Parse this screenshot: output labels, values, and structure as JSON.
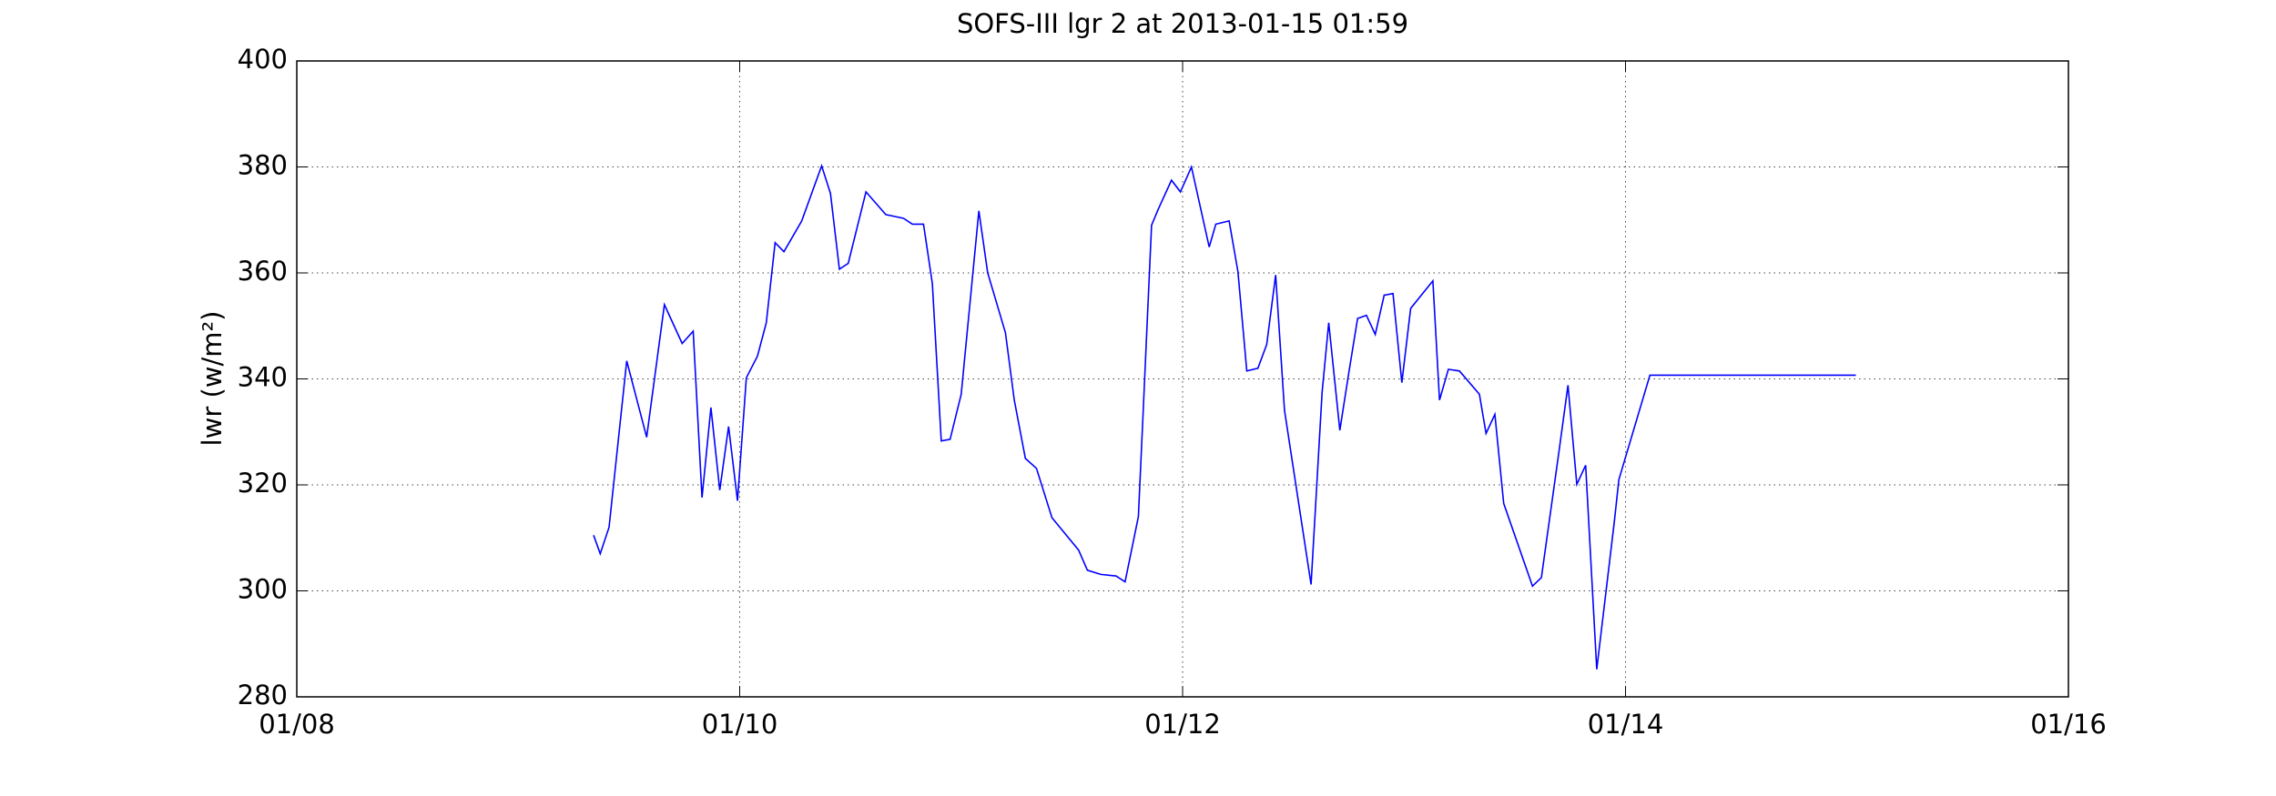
{
  "chart_data": {
    "type": "line",
    "title": "SOFS-III lgr 2 at 2013-01-15 01:59",
    "ylabel": "lwr (w/m²)",
    "x": [
      9.34,
      9.37,
      9.41,
      9.49,
      9.58,
      9.66,
      9.74,
      9.79,
      9.83,
      9.87,
      9.91,
      9.95,
      9.99,
      10.03,
      10.08,
      10.12,
      10.16,
      10.2,
      10.28,
      10.37,
      10.41,
      10.45,
      10.49,
      10.57,
      10.66,
      10.74,
      10.78,
      10.83,
      10.87,
      10.91,
      10.95,
      11.0,
      11.08,
      11.12,
      11.2,
      11.24,
      11.29,
      11.34,
      11.41,
      11.53,
      11.57,
      11.63,
      11.7,
      11.74,
      11.8,
      11.82,
      11.86,
      11.89,
      11.95,
      11.99,
      12.04,
      12.12,
      12.15,
      12.21,
      12.25,
      12.29,
      12.34,
      12.38,
      12.42,
      12.46,
      12.58,
      12.63,
      12.66,
      12.71,
      12.75,
      12.79,
      12.83,
      12.87,
      12.91,
      12.95,
      12.99,
      13.03,
      13.13,
      13.16,
      13.2,
      13.25,
      13.34,
      13.37,
      13.41,
      13.45,
      13.58,
      13.62,
      13.7,
      13.74,
      13.78,
      13.82,
      13.87,
      13.95,
      13.97,
      14.11,
      15.04
    ],
    "series": [
      {
        "name": "lwr",
        "color": "#0000ff",
        "values": [
          310.5,
          307,
          312,
          343.4,
          329,
          354,
          346.7,
          349,
          317.6,
          334.6,
          319,
          331,
          317,
          340.2,
          344.3,
          350.6,
          365.7,
          364,
          369.8,
          380.2,
          375,
          360.7,
          361.8,
          375.3,
          371,
          370.3,
          369.2,
          369.2,
          358,
          328.3,
          328.6,
          337.1,
          371.7,
          360,
          348.7,
          336,
          325,
          323.1,
          313.8,
          307.7,
          303.9,
          303.1,
          302.8,
          301.7,
          314,
          332,
          369,
          372,
          377.5,
          375.3,
          380,
          364.9,
          369.2,
          369.8,
          360.2,
          341.5,
          342,
          346.5,
          359.6,
          334.1,
          301.2,
          337.4,
          350.6,
          330.3,
          341,
          351.4,
          352,
          348.4,
          355.8,
          356.1,
          339.3,
          353.3,
          358.5,
          336,
          341.8,
          341.5,
          337.1,
          329.7,
          333.3,
          316.5,
          300.9,
          302.5,
          326.4,
          338.8,
          320.1,
          323.7,
          285.2,
          313.2,
          321,
          340.7,
          340.7
        ]
      }
    ],
    "xlim": [
      8,
      16
    ],
    "xticks": [
      {
        "value": 8,
        "label": "01/08"
      },
      {
        "value": 10,
        "label": "01/10"
      },
      {
        "value": 12,
        "label": "01/12"
      },
      {
        "value": 14,
        "label": "01/14"
      },
      {
        "value": 16,
        "label": "01/16"
      }
    ],
    "ylim": [
      280,
      400
    ],
    "yticks": [
      280,
      300,
      320,
      340,
      360,
      380,
      400
    ],
    "grid": true
  }
}
